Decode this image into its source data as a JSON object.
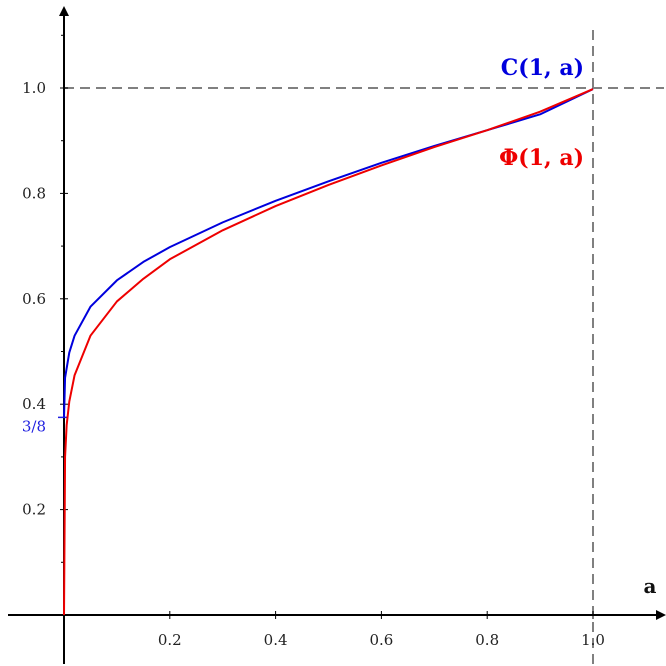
{
  "chart_data": {
    "type": "line",
    "title": "",
    "xlabel": "a",
    "ylabel": "",
    "xlim": [
      -0.1,
      1.13
    ],
    "ylim": [
      -0.05,
      1.15
    ],
    "grid": false,
    "x_ticks": [
      {
        "value": 0.2,
        "label": "0.2"
      },
      {
        "value": 0.4,
        "label": "0.4"
      },
      {
        "value": 0.6,
        "label": "0.6"
      },
      {
        "value": 0.8,
        "label": "0.8"
      },
      {
        "value": 1.0,
        "label": "1.0"
      }
    ],
    "y_ticks": [
      {
        "value": 0.2,
        "label": "0.2"
      },
      {
        "value": 0.4,
        "label": "0.4"
      },
      {
        "value": 0.6,
        "label": "0.6"
      },
      {
        "value": 0.8,
        "label": "0.8"
      },
      {
        "value": 1.0,
        "label": "1.0"
      }
    ],
    "special_tick": {
      "value": 0.375,
      "label": "3/8",
      "color": "#1f1fe0"
    },
    "reference_lines": [
      {
        "orientation": "horizontal",
        "value": 1.0,
        "style": "dashed",
        "color": "#808080"
      },
      {
        "orientation": "vertical",
        "value": 1.0,
        "style": "dashed",
        "color": "#808080"
      }
    ],
    "series": [
      {
        "name": "C(1, a)",
        "color": "#0000dd",
        "x": [
          0.0,
          0.002,
          0.01,
          0.02,
          0.05,
          0.1,
          0.15,
          0.2,
          0.3,
          0.4,
          0.5,
          0.6,
          0.7,
          0.8,
          0.9,
          1.0
        ],
        "y": [
          0.375,
          0.45,
          0.498,
          0.53,
          0.585,
          0.635,
          0.67,
          0.698,
          0.745,
          0.786,
          0.823,
          0.858,
          0.89,
          0.92,
          0.95,
          0.998
        ]
      },
      {
        "name": "Φ(1, a)",
        "color": "#ee0000",
        "x": [
          0.0,
          0.002,
          0.005,
          0.01,
          0.02,
          0.05,
          0.1,
          0.15,
          0.2,
          0.3,
          0.4,
          0.5,
          0.6,
          0.7,
          0.8,
          0.9,
          1.0
        ],
        "y": [
          0.0,
          0.3,
          0.36,
          0.405,
          0.455,
          0.53,
          0.595,
          0.638,
          0.675,
          0.73,
          0.776,
          0.816,
          0.853,
          0.888,
          0.92,
          0.955,
          0.998
        ]
      }
    ]
  }
}
